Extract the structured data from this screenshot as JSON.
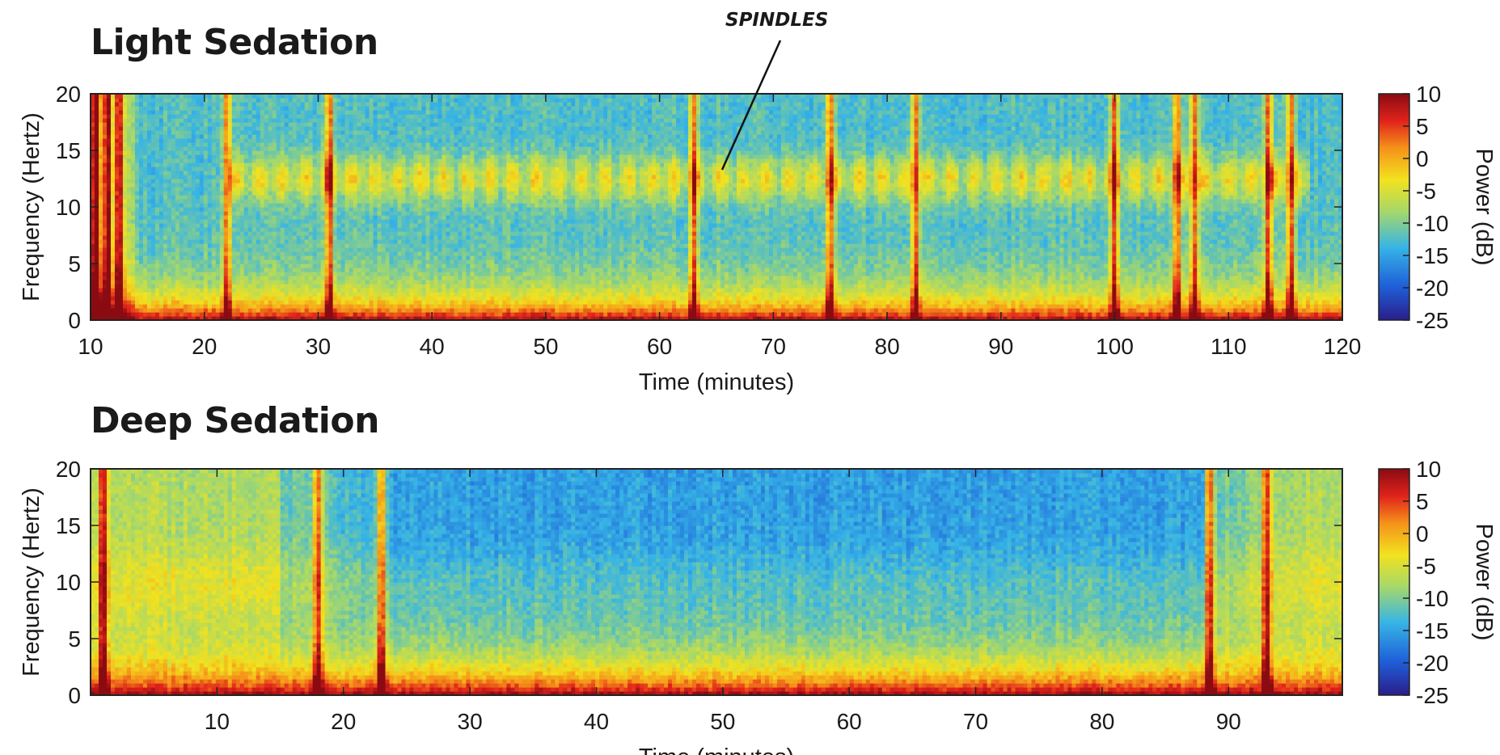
{
  "annotation": "SPINDLES",
  "chart_data": [
    {
      "type": "heatmap",
      "title": "Light Sedation",
      "xlabel": "Time (minutes)",
      "ylabel": "Frequency (Hertz)",
      "xlim": [
        10,
        120
      ],
      "ylim": [
        0,
        20
      ],
      "xticks": [
        10,
        20,
        30,
        40,
        50,
        60,
        70,
        80,
        90,
        100,
        110,
        120
      ],
      "yticks": [
        0,
        5,
        10,
        15,
        20
      ],
      "colorbar": {
        "label": "Power (dB)",
        "range": [
          -25,
          10
        ],
        "ticks": [
          10,
          5,
          0,
          -5,
          -10,
          -15,
          -20,
          -25
        ],
        "colormap": "jet"
      },
      "features": {
        "low_freq_max_hz": 3,
        "spindle_band_hz": [
          10,
          15
        ],
        "spindle_time_min": [
          22,
          117
        ],
        "broadband_artifacts_min": [
          10.5,
          11.5,
          12.5,
          22,
          31,
          63,
          75,
          82.5,
          100,
          105.5,
          107,
          113.5,
          115.5
        ]
      },
      "colors": {
        "low": "#a60000",
        "high_freq": "#3aa8d8",
        "spindle": "#e8701c"
      }
    },
    {
      "type": "heatmap",
      "title": "Deep Sedation",
      "xlabel": "Time (minutes)",
      "ylabel": "Frequency (Hertz)",
      "xlim": [
        0,
        99
      ],
      "ylim": [
        0,
        20
      ],
      "xticks": [
        10,
        20,
        30,
        40,
        50,
        60,
        70,
        80,
        90
      ],
      "yticks": [
        0,
        5,
        10,
        15,
        20
      ],
      "colorbar": {
        "label": "Power (dB)",
        "range": [
          -25,
          10
        ],
        "ticks": [
          10,
          5,
          0,
          -5,
          -10,
          -15,
          -20,
          -25
        ],
        "colormap": "jet"
      },
      "features": {
        "slow_wave_max_hz": 3,
        "alpha_band_hz": [
          8,
          12
        ],
        "deep_blue_time_min": [
          25,
          88
        ],
        "broadband_artifacts_min": [
          1,
          18,
          23,
          88.5,
          93
        ]
      },
      "colors": {
        "low": "#8a0000",
        "high_freq": "#2a7fd0",
        "mid": "#e8e030"
      }
    }
  ]
}
